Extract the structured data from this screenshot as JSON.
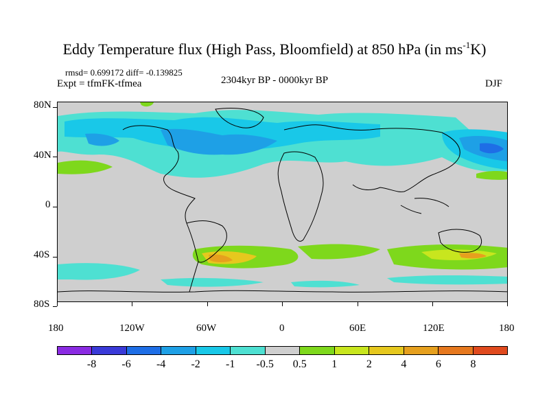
{
  "title_main": "Eddy Temperature flux (High Pass, Bloomfield) at 850 hPa (in ms",
  "title_sup": "-1",
  "title_end": "K)",
  "stats": "rmsd= 0.699172 diff= -0.139825",
  "expt": "Expt = tfmFK-tfmea",
  "period": "2304kyr BP - 0000kyr BP",
  "season": "DJF",
  "lat_labels": [
    "80N",
    "40N",
    "0",
    "40S",
    "80S"
  ],
  "lon_labels": [
    "180",
    "120W",
    "60W",
    "0",
    "60E",
    "120E",
    "180"
  ],
  "colorbar": {
    "colors": [
      "#8a2be2",
      "#3a3ad8",
      "#1e6ee6",
      "#1ea0e6",
      "#19c8e8",
      "#4ee0d2",
      "#cfcfcf",
      "#7ed81c",
      "#c8e61e",
      "#e6c81e",
      "#e6a01e",
      "#e6781e",
      "#e04a1e"
    ],
    "labels": [
      "-8",
      "-6",
      "-4",
      "-2",
      "-1",
      "-0.5",
      "0.5",
      "1",
      "2",
      "4",
      "6",
      "8"
    ]
  }
}
